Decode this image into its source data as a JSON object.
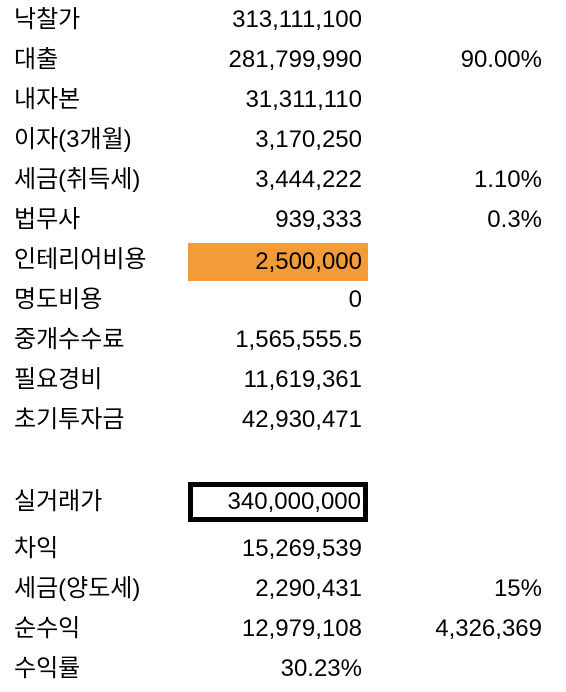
{
  "rows": [
    {
      "label": "낙찰가",
      "value": "313,111,100",
      "extra": ""
    },
    {
      "label": "대출",
      "value": "281,799,990",
      "extra": "90.00%"
    },
    {
      "label": "내자본",
      "value": "31,311,110",
      "extra": ""
    },
    {
      "label": "이자(3개월)",
      "value": "3,170,250",
      "extra": ""
    },
    {
      "label": "세금(취득세)",
      "value": "3,444,222",
      "extra": "1.10%"
    },
    {
      "label": "법무사",
      "value": "939,333",
      "extra": "0.3%"
    },
    {
      "label": "인테리어비용",
      "value": "2,500,000",
      "extra": ""
    },
    {
      "label": "명도비용",
      "value": "0",
      "extra": ""
    },
    {
      "label": "중개수수료",
      "value": "1,565,555.5",
      "extra": ""
    },
    {
      "label": "필요경비",
      "value": "11,619,361",
      "extra": ""
    },
    {
      "label": "초기투자금",
      "value": "42,930,471",
      "extra": ""
    },
    {
      "label": "실거래가",
      "value": "340,000,000",
      "extra": ""
    },
    {
      "label": "차익",
      "value": "15,269,539",
      "extra": ""
    },
    {
      "label": "세금(양도세)",
      "value": "2,290,431",
      "extra": "15%"
    },
    {
      "label": "순수익",
      "value": "12,979,108",
      "extra": "4,326,369"
    },
    {
      "label": "수익률",
      "value": "30.23%",
      "extra": ""
    }
  ],
  "colors": {
    "highlight_fill": "#f29b38",
    "box_border": "#000000",
    "text": "#000000",
    "background": "#ffffff"
  }
}
